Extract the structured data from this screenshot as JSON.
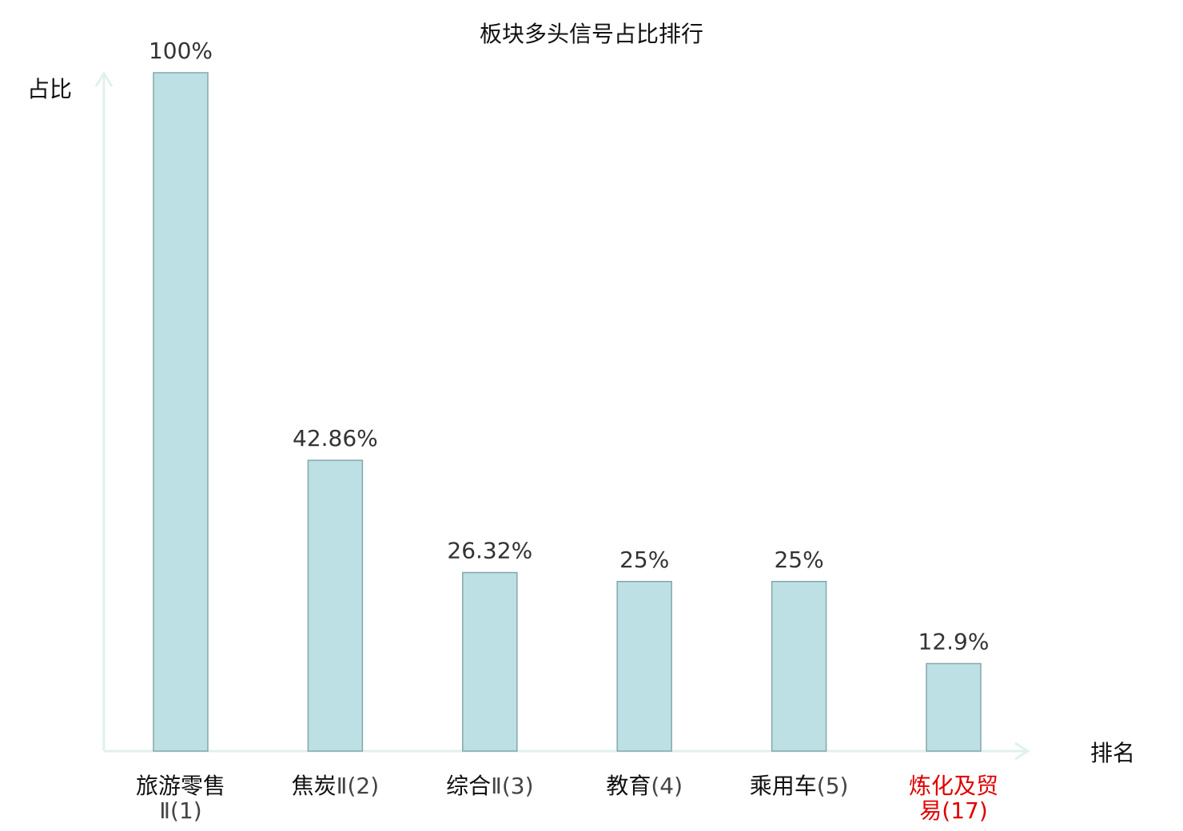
{
  "chart_data": {
    "type": "bar",
    "title": "板块多头信号占比排行",
    "ylabel": "占比",
    "xlabel": "排名",
    "ylim": [
      0,
      100
    ],
    "grid": false,
    "categories": [
      {
        "lines": [
          {
            "name": "旅游零售",
            "rank": ""
          },
          {
            "name": "",
            "rank": "Ⅱ(1)"
          }
        ],
        "highlight": false
      },
      {
        "lines": [
          {
            "name": "焦炭",
            "rank": "Ⅱ(2)"
          }
        ],
        "highlight": false
      },
      {
        "lines": [
          {
            "name": "综合",
            "rank": "Ⅱ(3)"
          }
        ],
        "highlight": false
      },
      {
        "lines": [
          {
            "name": "教育",
            "rank": "(4)"
          }
        ],
        "highlight": false
      },
      {
        "lines": [
          {
            "name": "乘用车",
            "rank": "(5)"
          }
        ],
        "highlight": false
      },
      {
        "lines": [
          {
            "name": "炼化及贸",
            "rank": ""
          },
          {
            "name": "易",
            "rank": "(17)"
          }
        ],
        "highlight": true
      }
    ],
    "values": [
      100,
      42.86,
      26.32,
      25,
      25,
      12.9
    ],
    "value_labels": [
      "100%",
      "42.86%",
      "26.32%",
      "25%",
      "25%",
      "12.9%"
    ],
    "colors": {
      "bar_fill": "#bce0e3",
      "bar_stroke": "#86a6aa",
      "axis": "#e0f1ee",
      "text": "#111111",
      "rank_text": "#444444",
      "highlight": "#e00000",
      "value_text": "#333333"
    }
  }
}
